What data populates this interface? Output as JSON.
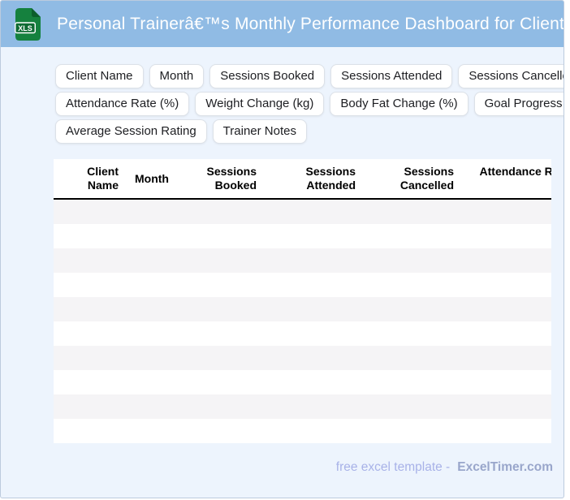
{
  "titlebar": {
    "badge": "XLS",
    "title": "Personal Trainerâ€™s Monthly Performance Dashboard for Clients"
  },
  "chips": {
    "rows": [
      [
        "Client Name",
        "Month",
        "Sessions Booked",
        "Sessions Attended",
        "Sessions Cancelled"
      ],
      [
        "Attendance Rate (%)",
        "Weight Change (kg)",
        "Body Fat Change (%)",
        "Goal Progress (%)"
      ],
      [
        "Average Session Rating",
        "Trainer Notes"
      ]
    ]
  },
  "table": {
    "columns": [
      {
        "label": "Client Name",
        "align": "right"
      },
      {
        "label": "Month",
        "align": "left"
      },
      {
        "label": "Sessions Booked",
        "align": "right"
      },
      {
        "label": "Sessions Attended",
        "align": "right"
      },
      {
        "label": "Sessions Cancelled",
        "align": "right"
      },
      {
        "label": "Attendance Rate (%)",
        "align": "right"
      }
    ],
    "row_count": 10
  },
  "footer": {
    "text": "free excel template -",
    "brand": "ExcelTimer.com"
  },
  "colors": {
    "header_bg": "#90bbe4",
    "page_bg": "#edf4fd",
    "card_border": "#bccbde",
    "chip_border": "#dce1e8",
    "chip_text": "#1d1e22",
    "stripe": "#f5f4f6",
    "table_header_text": "#000000",
    "header_rule": "#000000",
    "footer_text": "#a8b2e8",
    "footer_brand": "#99a6cb",
    "icon_green": "#15813e",
    "icon_green_dark": "#0b5e2c",
    "icon_label_bg": "#0f6b33",
    "title_text": "#ffffff"
  }
}
